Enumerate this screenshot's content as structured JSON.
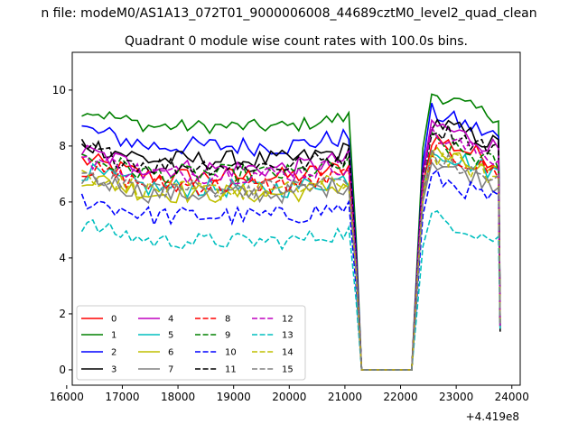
{
  "chart_data": {
    "type": "line",
    "suptitle": "n file: modeM0/AS1A13_072T01_9000006008_44689cztM0_level2_quad_clean",
    "title": "Quadrant 0 module wise count rates with 100.0s bins.",
    "xlabel": "",
    "ylabel": "",
    "x_offset_label": "+4.419e8",
    "xlim": [
      16100,
      24150
    ],
    "ylim": [
      -0.55,
      11.35
    ],
    "xticks": [
      16000,
      17000,
      18000,
      19000,
      20000,
      21000,
      22000,
      23000,
      24000
    ],
    "yticks": [
      0,
      2,
      4,
      6,
      8,
      10
    ],
    "grid": false,
    "legend": {
      "position": "lower-left",
      "columns": 4
    },
    "series": [
      {
        "name": "0",
        "color": "#ff0000",
        "dash": "solid",
        "level1": 6.9,
        "level2": 8.3,
        "noise": 0.35
      },
      {
        "name": "1",
        "color": "#008000",
        "dash": "solid",
        "level1": 8.7,
        "level2": 9.9,
        "noise": 0.25
      },
      {
        "name": "2",
        "color": "#0000ff",
        "dash": "solid",
        "level1": 8.0,
        "level2": 9.2,
        "noise": 0.35
      },
      {
        "name": "3",
        "color": "#000000",
        "dash": "solid",
        "level1": 7.5,
        "level2": 8.9,
        "noise": 0.35
      },
      {
        "name": "4",
        "color": "#bf00bf",
        "dash": "solid",
        "level1": 7.2,
        "level2": 8.8,
        "noise": 0.35
      },
      {
        "name": "5",
        "color": "#00bfbf",
        "dash": "solid",
        "level1": 6.5,
        "level2": 7.9,
        "noise": 0.35
      },
      {
        "name": "6",
        "color": "#bfbf00",
        "dash": "solid",
        "level1": 6.3,
        "level2": 7.8,
        "noise": 0.35
      },
      {
        "name": "7",
        "color": "#808080",
        "dash": "solid",
        "level1": 6.3,
        "level2": 7.5,
        "noise": 0.35
      },
      {
        "name": "8",
        "color": "#ff0000",
        "dash": "dashed",
        "level1": 6.6,
        "level2": 7.9,
        "noise": 0.35
      },
      {
        "name": "9",
        "color": "#008000",
        "dash": "dashed",
        "level1": 7.0,
        "level2": 8.2,
        "noise": 0.35
      },
      {
        "name": "10",
        "color": "#0000ff",
        "dash": "dashed",
        "level1": 5.5,
        "level2": 6.9,
        "noise": 0.35
      },
      {
        "name": "11",
        "color": "#000000",
        "dash": "dashed",
        "level1": 7.3,
        "level2": 8.7,
        "noise": 0.35
      },
      {
        "name": "12",
        "color": "#bf00bf",
        "dash": "dashed",
        "level1": 7.0,
        "level2": 8.4,
        "noise": 0.35
      },
      {
        "name": "13",
        "color": "#00bfbf",
        "dash": "dashed",
        "level1": 4.6,
        "level2": 5.5,
        "noise": 0.3
      },
      {
        "name": "14",
        "color": "#bfbf00",
        "dash": "dashed",
        "level1": 6.4,
        "level2": 7.7,
        "noise": 0.35
      },
      {
        "name": "15",
        "color": "#808080",
        "dash": "dashed",
        "level1": 6.5,
        "level2": 7.6,
        "noise": 0.35
      }
    ],
    "segments": {
      "active1": [
        16270,
        21120
      ],
      "drop1_end": 21300,
      "gap": [
        21300,
        22260
      ],
      "rise_start": 22560,
      "active2": [
        22560,
        23780
      ],
      "bin": 100
    }
  }
}
